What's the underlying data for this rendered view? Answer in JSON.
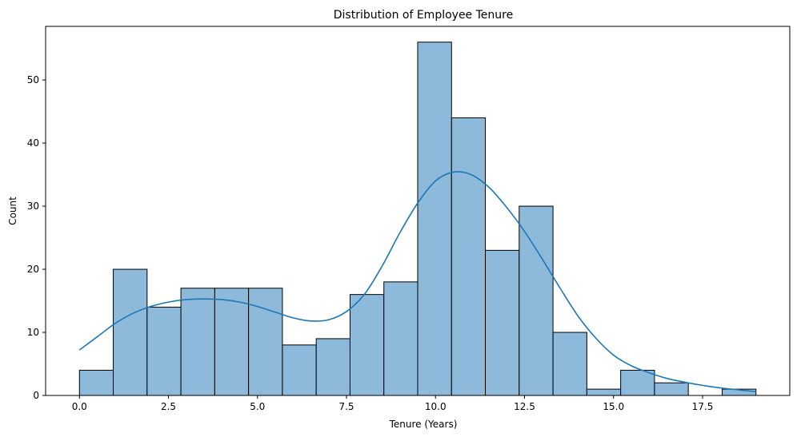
{
  "chart_data": {
    "type": "bar",
    "title": "Distribution of Employee Tenure",
    "xlabel": "Tenure (Years)",
    "ylabel": "Count",
    "xlim": [
      -0.95,
      19.95
    ],
    "ylim": [
      0,
      58.5
    ],
    "xticks": [
      0.0,
      2.5,
      5.0,
      7.5,
      10.0,
      12.5,
      15.0,
      17.5
    ],
    "xtick_labels": [
      "0.0",
      "2.5",
      "5.0",
      "7.5",
      "10.0",
      "12.5",
      "15.0",
      "17.5"
    ],
    "yticks": [
      0,
      10,
      20,
      30,
      40,
      50
    ],
    "ytick_labels": [
      "0",
      "10",
      "20",
      "30",
      "40",
      "50"
    ],
    "bin_edges": [
      0,
      0.95,
      1.9,
      2.85,
      3.8,
      4.75,
      5.7,
      6.65,
      7.6,
      8.55,
      9.5,
      10.45,
      11.4,
      12.35,
      13.3,
      14.25,
      15.2,
      16.15,
      17.1,
      18.05,
      19.0
    ],
    "counts": [
      4,
      20,
      14,
      17,
      17,
      17,
      8,
      9,
      16,
      18,
      56,
      44,
      23,
      30,
      10,
      1,
      4,
      2,
      0,
      1
    ],
    "kde": {
      "x": [
        0,
        0.5,
        1,
        1.5,
        2,
        2.5,
        3,
        3.5,
        4,
        4.5,
        5,
        5.5,
        6,
        6.5,
        7,
        7.5,
        8,
        8.5,
        9,
        9.5,
        10,
        10.5,
        11,
        11.5,
        12,
        12.5,
        13,
        13.5,
        14,
        14.5,
        15,
        15.5,
        16,
        16.5,
        17,
        17.5,
        18,
        18.5,
        19
      ],
      "y": [
        7.2,
        9.3,
        11.4,
        13.0,
        14.1,
        14.8,
        15.2,
        15.3,
        15.2,
        14.8,
        14.1,
        13.2,
        12.3,
        11.8,
        12.0,
        13.3,
        16.0,
        20.5,
        25.8,
        30.5,
        34.0,
        35.4,
        35.0,
        33.0,
        29.8,
        26.0,
        21.6,
        17.0,
        12.6,
        9.1,
        6.4,
        4.7,
        3.6,
        2.7,
        2.1,
        1.6,
        1.2,
        0.9,
        0.6
      ]
    },
    "colors": {
      "bar_fill": "#8dbadb",
      "bar_edge": "#000000",
      "kde_line": "#1f77b4"
    }
  }
}
